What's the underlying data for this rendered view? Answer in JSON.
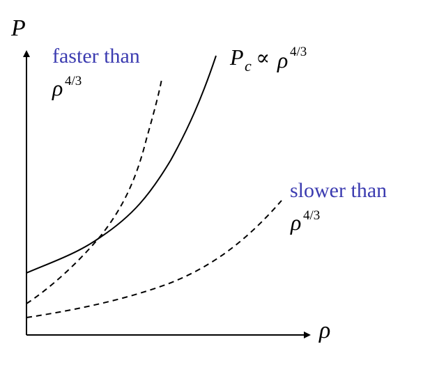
{
  "axes": {
    "y_label": "P",
    "x_label": "ρ"
  },
  "curves": {
    "critical": {
      "label_main": "P",
      "label_sub": "c",
      "label_prop": "∝",
      "label_rho": "ρ",
      "label_exp": "4/3",
      "style": "solid"
    },
    "faster": {
      "label_text": "faster than",
      "label_rho": "ρ",
      "label_exp": "4/3",
      "style": "dashed"
    },
    "slower": {
      "label_text": "slower than",
      "label_rho": "ρ",
      "label_exp": "4/3",
      "style": "dashed"
    }
  },
  "colors": {
    "axis": "#000000",
    "curve": "#000000",
    "annotation": "#3b3bb0",
    "math": "#000000"
  }
}
